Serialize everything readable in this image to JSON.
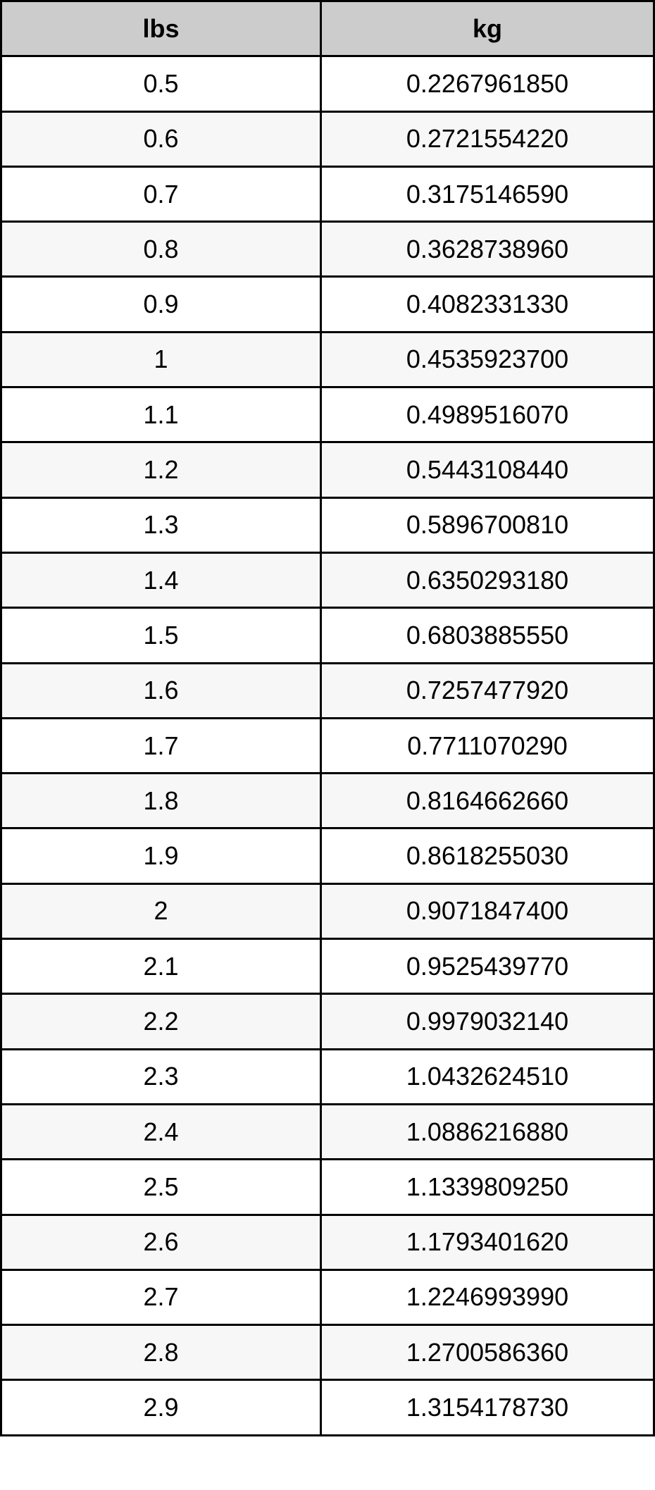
{
  "table": {
    "headers": [
      "lbs",
      "kg"
    ],
    "rows": [
      [
        "0.5",
        "0.2267961850"
      ],
      [
        "0.6",
        "0.2721554220"
      ],
      [
        "0.7",
        "0.3175146590"
      ],
      [
        "0.8",
        "0.3628738960"
      ],
      [
        "0.9",
        "0.4082331330"
      ],
      [
        "1",
        "0.4535923700"
      ],
      [
        "1.1",
        "0.4989516070"
      ],
      [
        "1.2",
        "0.5443108440"
      ],
      [
        "1.3",
        "0.5896700810"
      ],
      [
        "1.4",
        "0.6350293180"
      ],
      [
        "1.5",
        "0.6803885550"
      ],
      [
        "1.6",
        "0.7257477920"
      ],
      [
        "1.7",
        "0.7711070290"
      ],
      [
        "1.8",
        "0.8164662660"
      ],
      [
        "1.9",
        "0.8618255030"
      ],
      [
        "2",
        "0.9071847400"
      ],
      [
        "2.1",
        "0.9525439770"
      ],
      [
        "2.2",
        "0.9979032140"
      ],
      [
        "2.3",
        "1.0432624510"
      ],
      [
        "2.4",
        "1.0886216880"
      ],
      [
        "2.5",
        "1.1339809250"
      ],
      [
        "2.6",
        "1.1793401620"
      ],
      [
        "2.7",
        "1.2246993990"
      ],
      [
        "2.8",
        "1.2700586360"
      ],
      [
        "2.9",
        "1.3154178730"
      ]
    ]
  }
}
